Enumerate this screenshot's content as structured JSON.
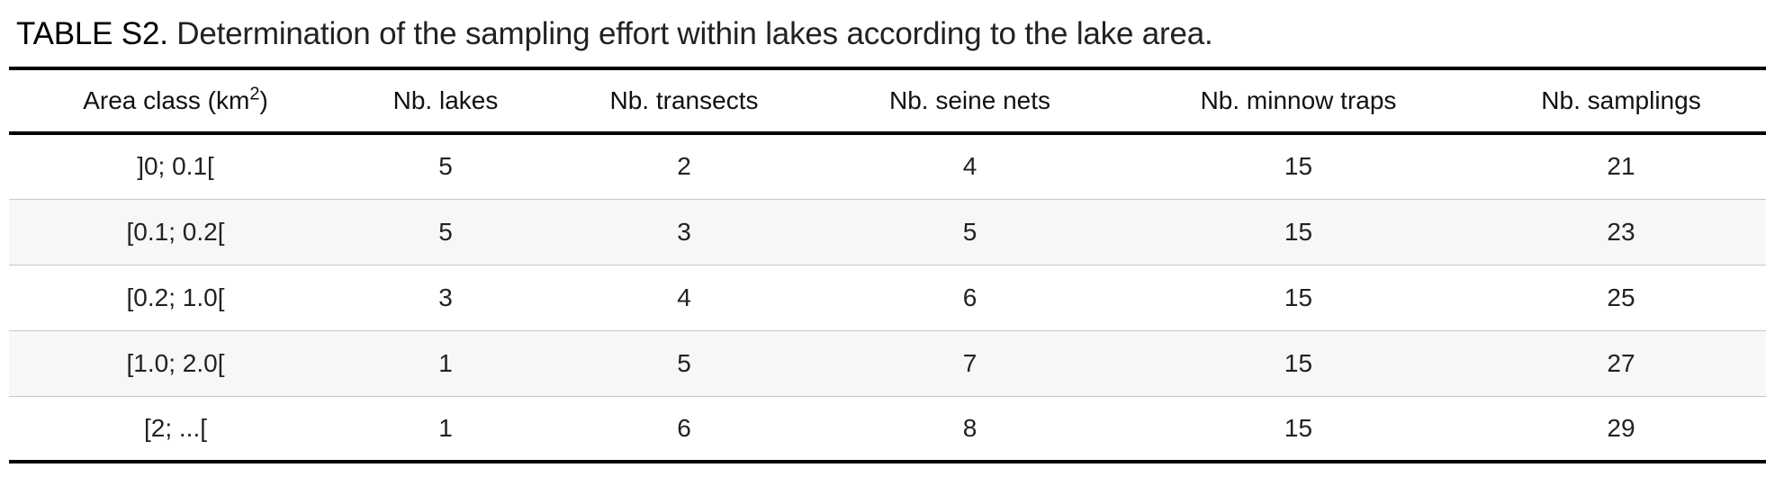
{
  "caption": {
    "label": "TABLE S2.",
    "text": "Determination of the sampling effort within lakes according to the lake area."
  },
  "table": {
    "headers": {
      "area_class": "Area class (km",
      "area_class_sup": "2",
      "area_class_close": ")",
      "lakes": "Nb. lakes",
      "transects": "Nb. transects",
      "seine_nets": "Nb. seine nets",
      "minnow_traps": "Nb. minnow traps",
      "samplings": "Nb. samplings"
    },
    "rows": [
      {
        "area_class": "]0; 0.1[",
        "lakes": "5",
        "transects": "2",
        "seine_nets": "4",
        "minnow_traps": "15",
        "samplings": "21"
      },
      {
        "area_class": "[0.1; 0.2[",
        "lakes": "5",
        "transects": "3",
        "seine_nets": "5",
        "minnow_traps": "15",
        "samplings": "23"
      },
      {
        "area_class": "[0.2; 1.0[",
        "lakes": "3",
        "transects": "4",
        "seine_nets": "6",
        "minnow_traps": "15",
        "samplings": "25"
      },
      {
        "area_class": "[1.0; 2.0[",
        "lakes": "1",
        "transects": "5",
        "seine_nets": "7",
        "minnow_traps": "15",
        "samplings": "27"
      },
      {
        "area_class": "[2; ...[",
        "lakes": "1",
        "transects": "6",
        "seine_nets": "8",
        "minnow_traps": "15",
        "samplings": "29"
      }
    ]
  }
}
